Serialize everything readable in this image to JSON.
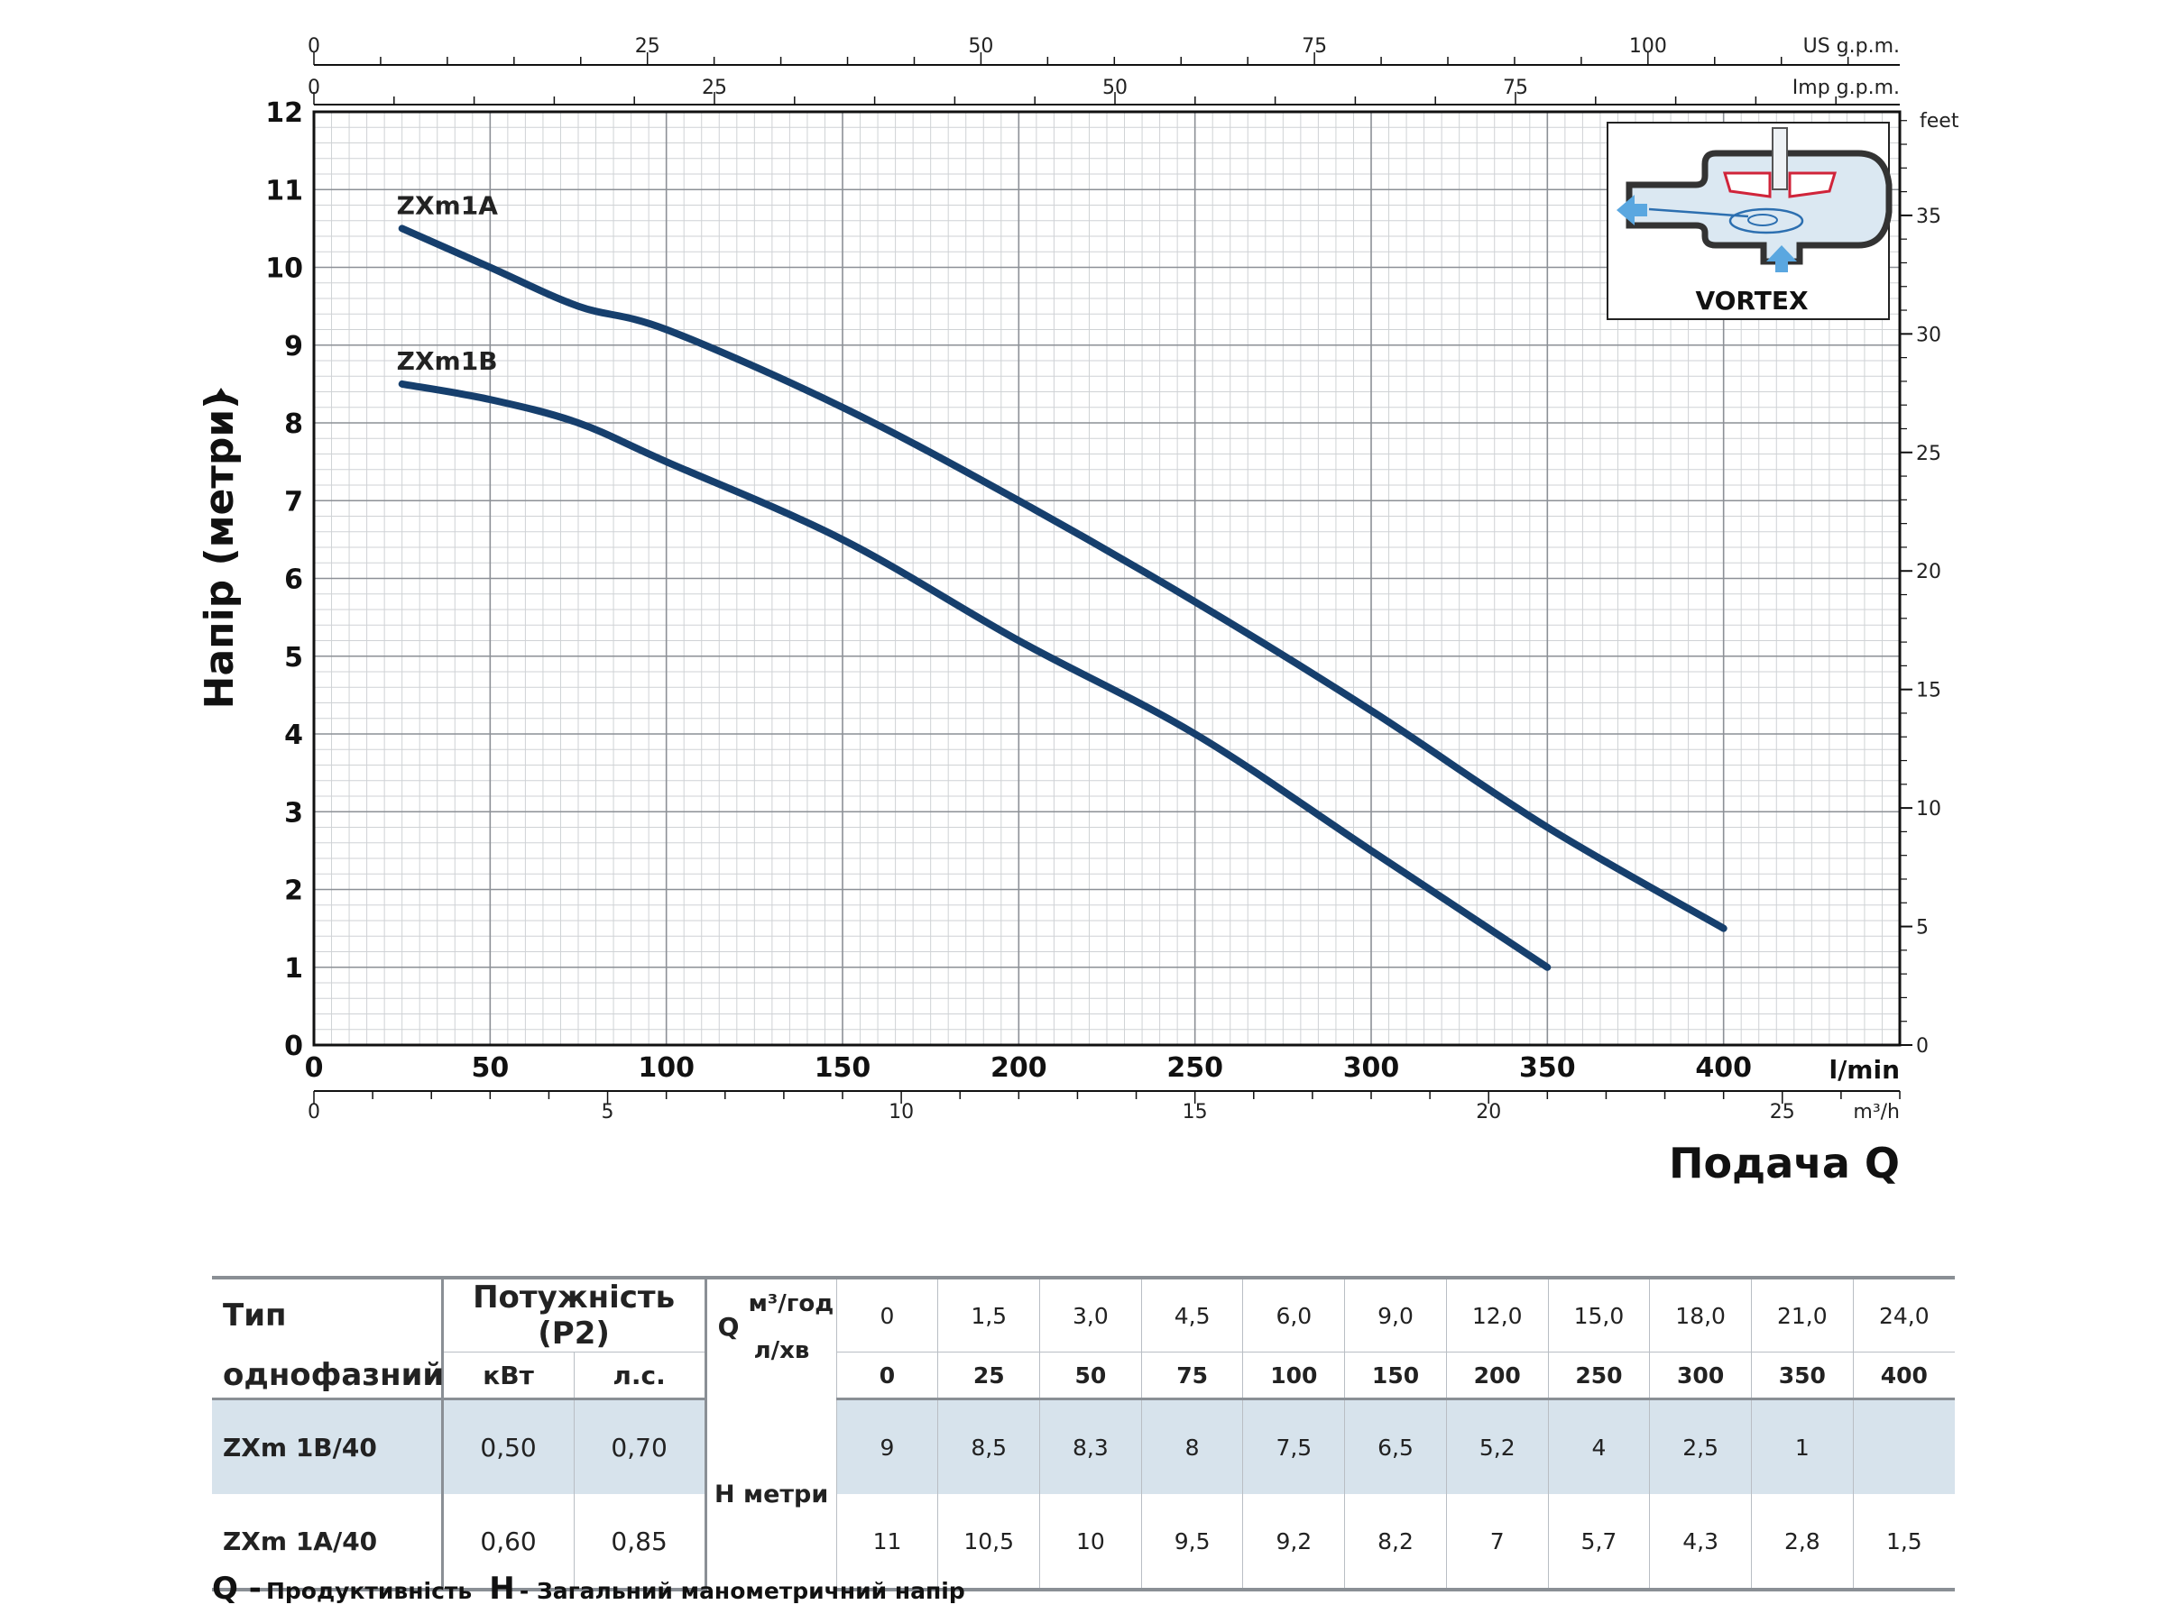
{
  "chart_data": {
    "type": "line",
    "ylabel": "Напір (метри)",
    "xlabel": "Подача Q",
    "ylim": [
      0,
      12
    ],
    "xlim": [
      0,
      450
    ],
    "y_ticks": [
      "0",
      "1",
      "2",
      "3",
      "4",
      "5",
      "6",
      "7",
      "8",
      "9",
      "10",
      "11",
      "12"
    ],
    "x_ticks_lmin": [
      "0",
      "50",
      "100",
      "150",
      "200",
      "250",
      "300",
      "350",
      "400"
    ],
    "x_unit_lmin": "l/min",
    "x_ticks_m3h": [
      "0",
      "5",
      "10",
      "15",
      "20",
      "25"
    ],
    "x_unit_m3h": "m³/h",
    "top_us_ticks": [
      "0",
      "25",
      "50",
      "75",
      "100"
    ],
    "top_us_unit": "US g.p.m.",
    "top_imp_ticks": [
      "0",
      "25",
      "50",
      "75"
    ],
    "top_imp_unit": "Imp g.p.m.",
    "right_feet_ticks": [
      "0",
      "5",
      "10",
      "15",
      "20",
      "25",
      "30",
      "35"
    ],
    "right_feet_unit": "feet",
    "grid": true,
    "series": [
      {
        "name": "ZXm1A",
        "x": [
          25,
          50,
          75,
          100,
          150,
          200,
          250,
          300,
          350,
          400
        ],
        "y": [
          10.5,
          10,
          9.5,
          9.2,
          8.2,
          7,
          5.7,
          4.3,
          2.8,
          1.5
        ]
      },
      {
        "name": "ZXm1B",
        "x": [
          25,
          50,
          75,
          100,
          150,
          200,
          250,
          300,
          350
        ],
        "y": [
          8.5,
          8.3,
          8,
          7.5,
          6.5,
          5.2,
          4,
          2.5,
          1
        ]
      }
    ],
    "inset_label": "VORTEX"
  },
  "table": {
    "type_label_1": "Тип",
    "type_label_2": "однофазний",
    "power_label": "Потужність (P2)",
    "kw_label": "кВт",
    "hp_label": "л.с.",
    "q_label": "Q",
    "m3h_label": "м³/год",
    "lmin_label": "л/хв",
    "h_label": "H метри",
    "m3h_values": [
      "0",
      "1,5",
      "3,0",
      "4,5",
      "6,0",
      "9,0",
      "12,0",
      "15,0",
      "18,0",
      "21,0",
      "24,0"
    ],
    "lmin_values": [
      "0",
      "25",
      "50",
      "75",
      "100",
      "150",
      "200",
      "250",
      "300",
      "350",
      "400"
    ],
    "rows": [
      {
        "model": "ZXm 1B/40",
        "kw": "0,50",
        "hp": "0,70",
        "h": [
          "9",
          "8,5",
          "8,3",
          "8",
          "7,5",
          "6,5",
          "5,2",
          "4",
          "2,5",
          "1",
          ""
        ]
      },
      {
        "model": "ZXm 1A/40",
        "kw": "0,60",
        "hp": "0,85",
        "h": [
          "11",
          "10,5",
          "10",
          "9,5",
          "9,2",
          "8,2",
          "7",
          "5,7",
          "4,3",
          "2,8",
          "1,5"
        ]
      }
    ]
  },
  "legend": {
    "q_letter": "Q -",
    "q_text": "Продуктивність",
    "h_letter": "H",
    "h_text": "- Загальний манометричний напір"
  }
}
